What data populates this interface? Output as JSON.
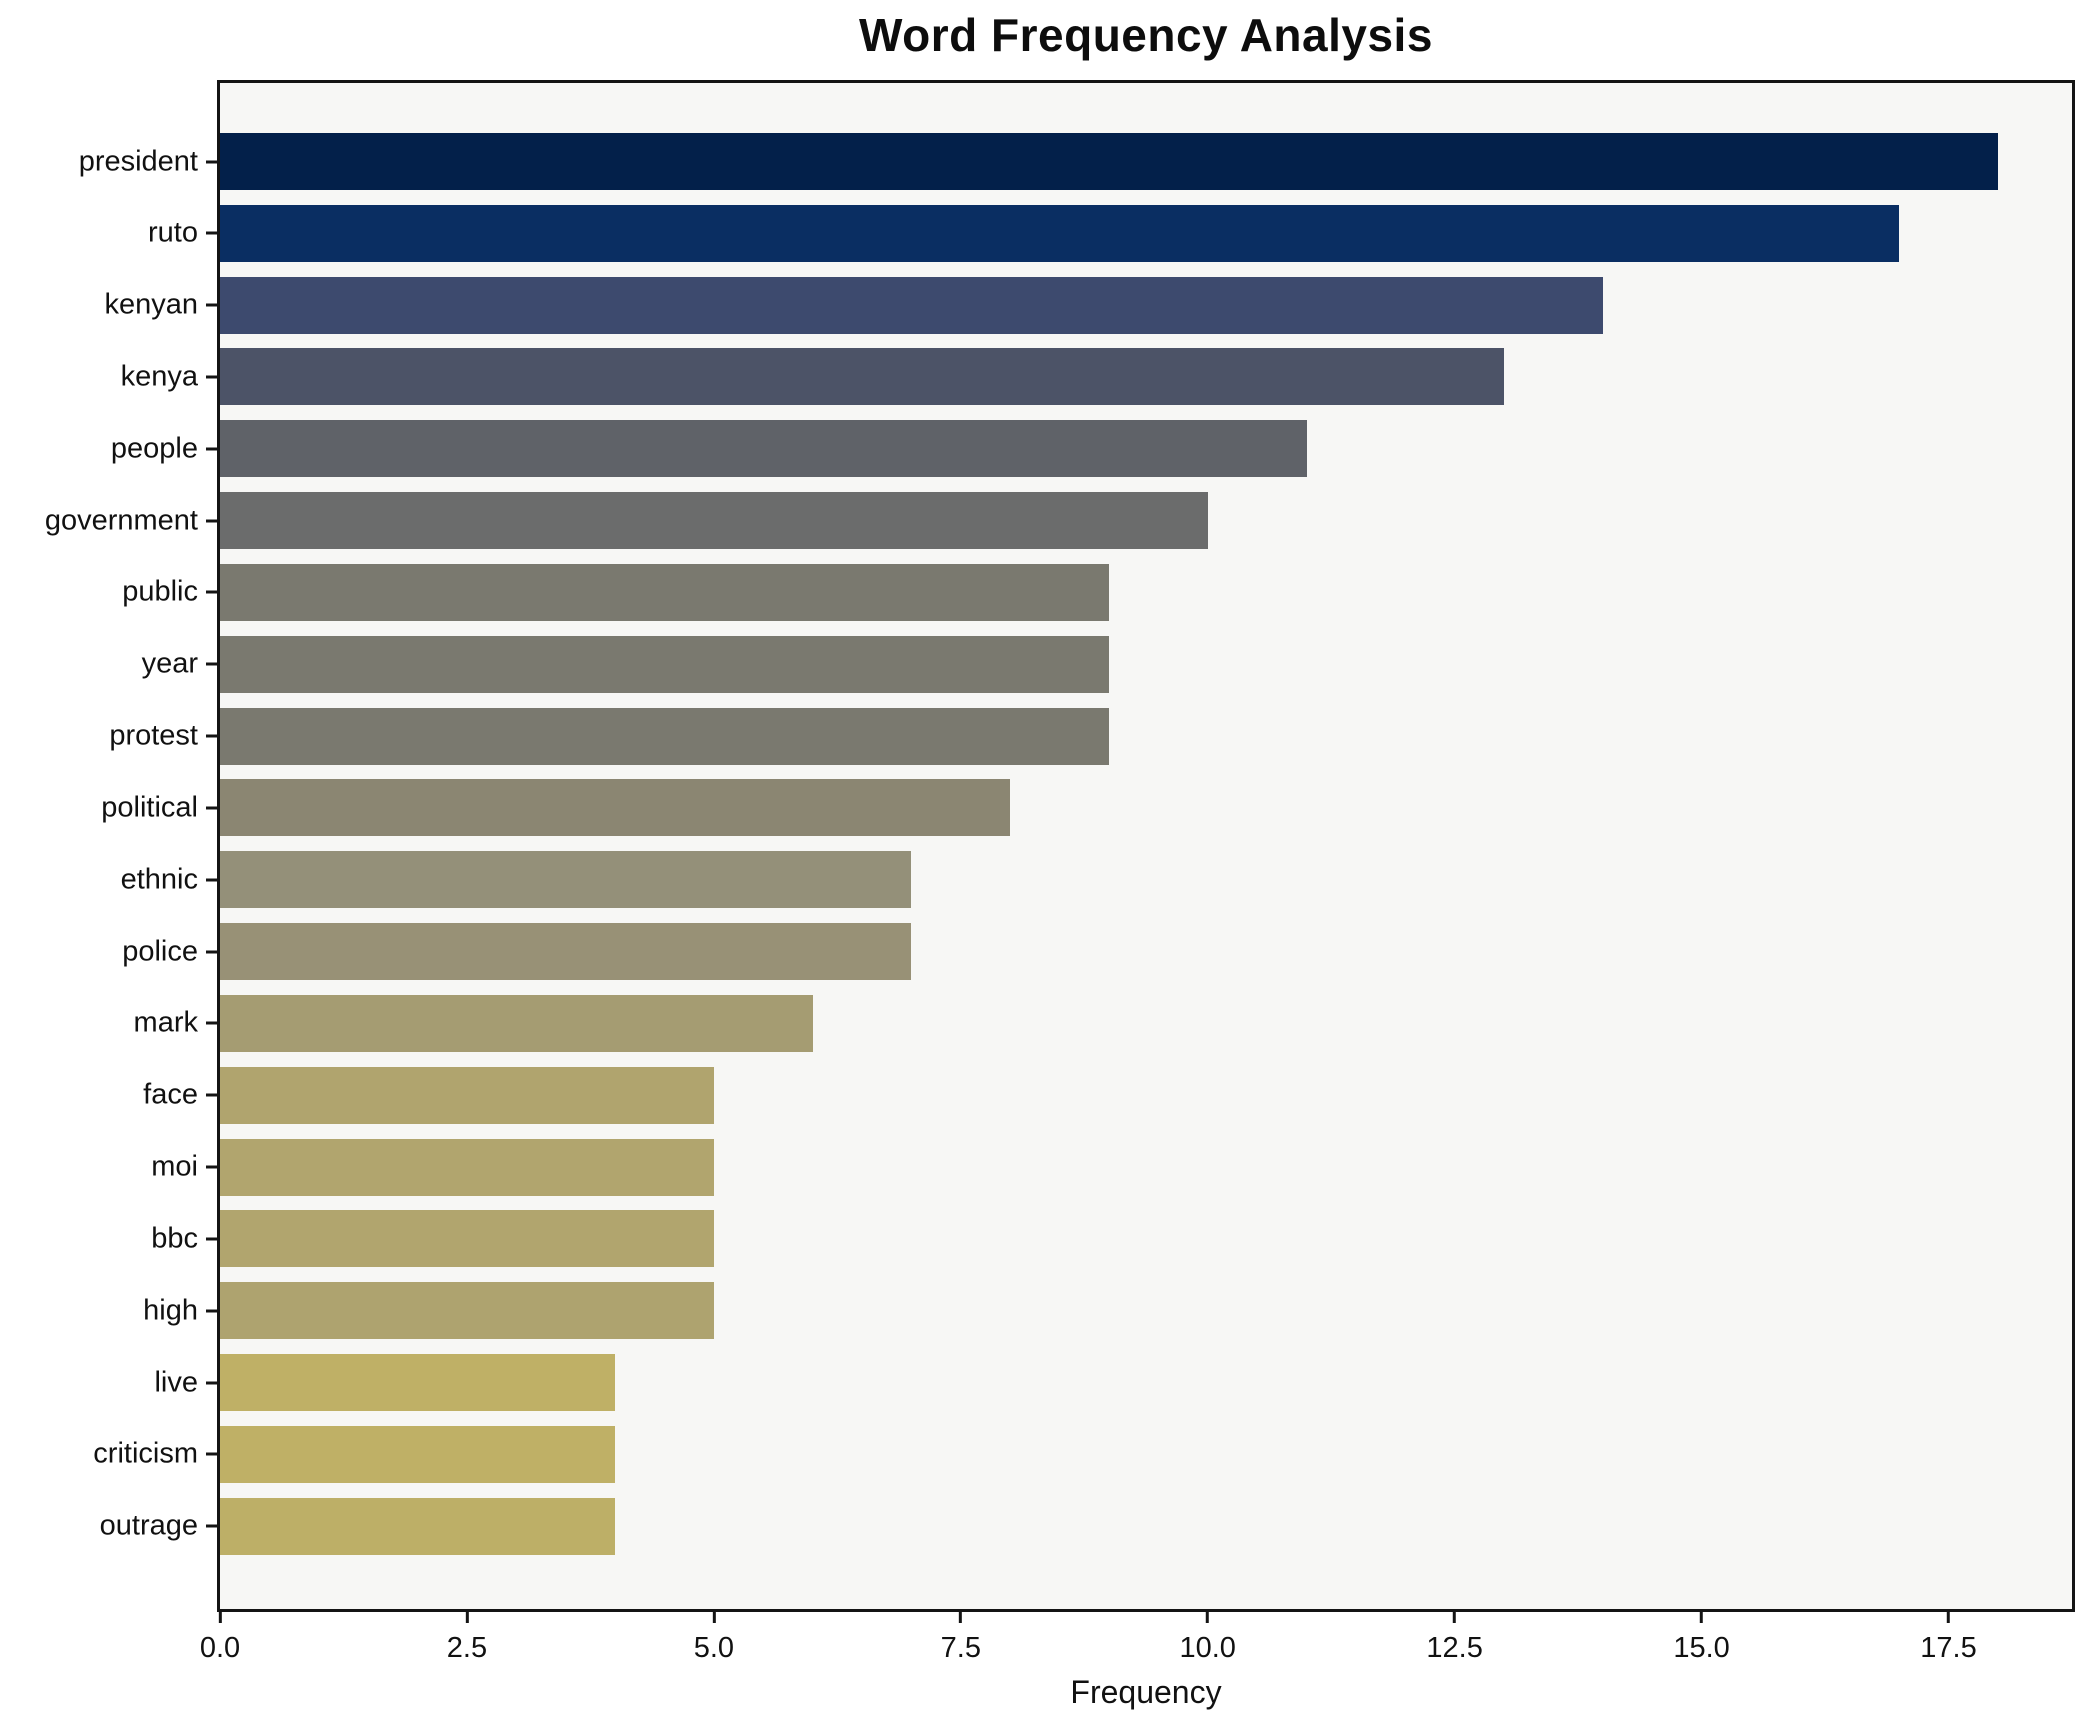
{
  "chart_data": {
    "type": "bar",
    "orientation": "horizontal",
    "title": "Word Frequency Analysis",
    "xlabel": "Frequency",
    "ylabel": "",
    "xlim": [
      0,
      18.75
    ],
    "grid": false,
    "legend": "none",
    "plot_background": "#f7f7f5",
    "figure_background": "#ffffff",
    "spine_color": "#141414",
    "x_ticks": [
      {
        "value": 0,
        "label": "0.0"
      },
      {
        "value": 2.5,
        "label": "2.5"
      },
      {
        "value": 5,
        "label": "5.0"
      },
      {
        "value": 7.5,
        "label": "7.5"
      },
      {
        "value": 10,
        "label": "10.0"
      },
      {
        "value": 12.5,
        "label": "12.5"
      },
      {
        "value": 15,
        "label": "15.0"
      },
      {
        "value": 17.5,
        "label": "17.5"
      }
    ],
    "categories": [
      "president",
      "ruto",
      "kenyan",
      "kenya",
      "people",
      "government",
      "public",
      "year",
      "protest",
      "political",
      "ethnic",
      "police",
      "mark",
      "face",
      "moi",
      "bbc",
      "high",
      "live",
      "criticism",
      "outrage"
    ],
    "values": [
      18,
      17,
      14,
      13,
      11,
      10,
      9,
      9,
      9,
      8,
      7,
      7,
      6,
      5,
      5,
      5,
      5,
      4,
      4,
      4
    ],
    "bar_colors": [
      "#03204a",
      "#0a2e62",
      "#3d4a6e",
      "#4c5367",
      "#5f6268",
      "#6b6c6c",
      "#7a796f",
      "#7a796f",
      "#7a796f",
      "#8b8672",
      "#949079",
      "#989176",
      "#a59c72",
      "#b0a46e",
      "#b1a56e",
      "#b1a56e",
      "#aea36f",
      "#bfb066",
      "#bfb066",
      "#bdaf67"
    ]
  }
}
